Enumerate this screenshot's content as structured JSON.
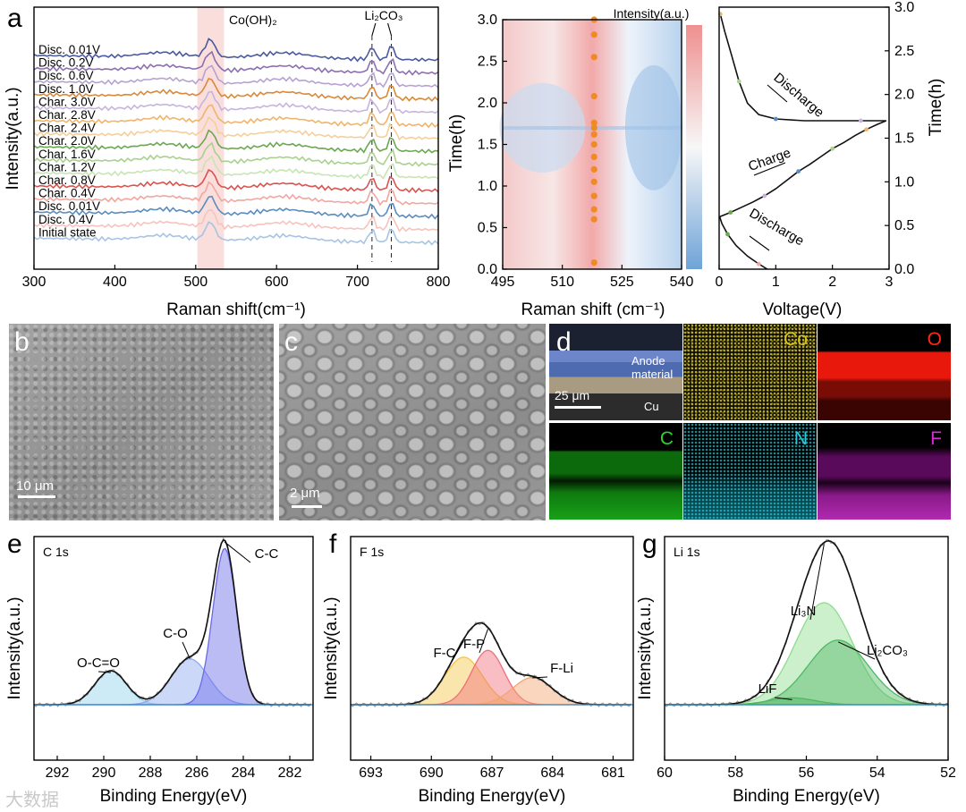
{
  "panel_labels": {
    "a": "a",
    "b": "b",
    "c": "c",
    "d": "d",
    "e": "e",
    "f": "f",
    "g": "g"
  },
  "sem": {
    "b_scale": "10 μm",
    "c_scale": "2 μm",
    "d_scale": "25 μm",
    "d_anode": "Anode\nmaterial",
    "d_cu": "Cu",
    "elements": [
      "Co",
      "O",
      "C",
      "N",
      "F"
    ],
    "element_colors": [
      "#d6c41a",
      "#ff2a1a",
      "#2ad42a",
      "#2ac8d8",
      "#d82ad8"
    ]
  },
  "watermark": "大数据",
  "chart_data": [
    {
      "id": "a-raman",
      "type": "line",
      "xlabel": "Raman shift(cm⁻¹)",
      "ylabel": "Intensity(a.u.)",
      "xlim": [
        300,
        800
      ],
      "xticks": [
        300,
        400,
        500,
        600,
        700,
        800
      ],
      "highlight_range": [
        502,
        535
      ],
      "annotations": [
        "Co(OH)₂",
        "Li₂CO₃"
      ],
      "dashed_lines": [
        718,
        742
      ],
      "peaks": [
        {
          "x": 518,
          "label": "Co(OH)₂"
        },
        {
          "x": 718,
          "label": "Li₂CO₃"
        },
        {
          "x": 742,
          "label": "Li₂CO₃"
        }
      ],
      "series": [
        {
          "name": "Disc. 0.01V",
          "color": "#4a5a9e"
        },
        {
          "name": "Disc. 0.2V",
          "color": "#8c6fb0"
        },
        {
          "name": "Disc. 0.6V",
          "color": "#b7a2d2"
        },
        {
          "name": "Disc. 1.0V",
          "color": "#d9893a"
        },
        {
          "name": "Char. 3.0V",
          "color": "#c8b3de"
        },
        {
          "name": "Char. 2.8V",
          "color": "#f0b46a"
        },
        {
          "name": "Char. 2.4V",
          "color": "#f5cf9a"
        },
        {
          "name": "Char. 2.0V",
          "color": "#6aa84f"
        },
        {
          "name": "Char. 1.6V",
          "color": "#a9d18e"
        },
        {
          "name": "Char. 1.2V",
          "color": "#c9e4b4"
        },
        {
          "name": "Char. 0.8V",
          "color": "#d9534f"
        },
        {
          "name": "Char. 0.4V",
          "color": "#f2a6a0"
        },
        {
          "name": "Disc. 0.01V",
          "color": "#5b8cc0"
        },
        {
          "name": "Disc. 0.4V",
          "color": "#f6c3bd"
        },
        {
          "name": "Initial state",
          "color": "#a7c4e4"
        }
      ]
    },
    {
      "id": "a-heatmap",
      "type": "heatmap",
      "title": "Intensity(a.u.)",
      "xlabel": "Raman shift (cm⁻¹)",
      "ylabel": "Time(h)",
      "xlim": [
        495,
        540
      ],
      "ylim": [
        0,
        3.0
      ],
      "xticks": [
        495,
        510,
        525,
        540
      ],
      "yticks": [
        0.0,
        0.5,
        1.0,
        1.5,
        2.0,
        2.5,
        3.0
      ],
      "marker_x": 518,
      "marker_times": [
        0.08,
        0.6,
        0.72,
        0.88,
        1.05,
        1.2,
        1.35,
        1.5,
        1.62,
        1.7,
        1.76,
        2.08,
        2.55,
        2.82,
        3.0
      ]
    },
    {
      "id": "a-voltage",
      "type": "line",
      "xlabel": "Voltage(V)",
      "ylabel": "Time(h)",
      "xlim": [
        0,
        3
      ],
      "ylim": [
        0,
        3.0
      ],
      "xticks": [
        0,
        1,
        2,
        3
      ],
      "yticks": [
        0.0,
        0.5,
        1.0,
        1.5,
        2.0,
        2.5,
        3.0
      ],
      "annotations": [
        "Discharge",
        "Charge",
        "Discharge"
      ],
      "series": [
        {
          "name": "Discharge 1",
          "x": [
            0.85,
            0.7,
            0.5,
            0.3,
            0.15,
            0.05,
            0.01
          ],
          "y": [
            0.0,
            0.06,
            0.15,
            0.27,
            0.4,
            0.52,
            0.6
          ]
        },
        {
          "name": "Charge",
          "x": [
            0.01,
            0.2,
            0.4,
            0.6,
            0.8,
            1.0,
            1.2,
            1.4,
            1.6,
            1.8,
            2.0,
            2.2,
            2.4,
            2.6,
            2.8,
            2.95
          ],
          "y": [
            0.6,
            0.65,
            0.71,
            0.77,
            0.84,
            0.92,
            1.02,
            1.12,
            1.2,
            1.29,
            1.38,
            1.45,
            1.53,
            1.6,
            1.66,
            1.7
          ]
        },
        {
          "name": "Discharge 2",
          "x": [
            2.95,
            2.5,
            2.0,
            1.5,
            1.0,
            0.7,
            0.5,
            0.35,
            0.22,
            0.1,
            0.02
          ],
          "y": [
            1.7,
            1.7,
            1.7,
            1.7,
            1.72,
            1.77,
            1.9,
            2.15,
            2.45,
            2.72,
            2.92
          ]
        }
      ]
    },
    {
      "id": "e-c1s",
      "type": "area",
      "title": "C 1s",
      "xlabel": "Binding Energy(eV)",
      "ylabel": "Intensity(a.u.)",
      "xlim": [
        293,
        281
      ],
      "xticks": [
        292,
        290,
        288,
        286,
        284,
        282
      ],
      "peaks": [
        {
          "name": "O-C=O",
          "center": 289.7,
          "height": 0.2,
          "fwhm": 1.6,
          "color": "#8ed3ee"
        },
        {
          "name": "C-O",
          "center": 286.3,
          "height": 0.27,
          "fwhm": 1.9,
          "color": "#8fa8f0"
        },
        {
          "name": "C-C",
          "center": 284.8,
          "height": 0.92,
          "fwhm": 1.2,
          "color": "#6a6ae8"
        }
      ]
    },
    {
      "id": "f-f1s",
      "type": "area",
      "title": "F 1s",
      "xlabel": "Binding Energy(eV)",
      "ylabel": "Intensity(a.u.)",
      "xlim": [
        694,
        680
      ],
      "xticks": [
        693,
        690,
        687,
        684,
        681
      ],
      "peaks": [
        {
          "name": "F-C",
          "center": 688.4,
          "height": 0.28,
          "fwhm": 2.2,
          "color": "#f5c64a"
        },
        {
          "name": "F-P",
          "center": 687.2,
          "height": 0.32,
          "fwhm": 1.9,
          "color": "#ef6f7a"
        },
        {
          "name": "F-Li",
          "center": 685.0,
          "height": 0.16,
          "fwhm": 2.3,
          "color": "#f3a572"
        }
      ]
    },
    {
      "id": "g-li1s",
      "type": "area",
      "title": "Li 1s",
      "xlabel": "Binding Energy(eV)",
      "ylabel": "Intensity(a.u.)",
      "xlim": [
        60,
        52
      ],
      "xticks": [
        60,
        58,
        56,
        54,
        52
      ],
      "peaks": [
        {
          "name": "LiF",
          "center": 56.4,
          "height": 0.04,
          "fwhm": 1.5,
          "color": "#2f8f46"
        },
        {
          "name": "Li₃N",
          "center": 55.5,
          "height": 0.6,
          "fwhm": 1.9,
          "color": "#8fdc8f"
        },
        {
          "name": "Li₂CO₃",
          "center": 55.1,
          "height": 0.38,
          "fwhm": 2.0,
          "color": "#4fb864"
        }
      ]
    }
  ]
}
